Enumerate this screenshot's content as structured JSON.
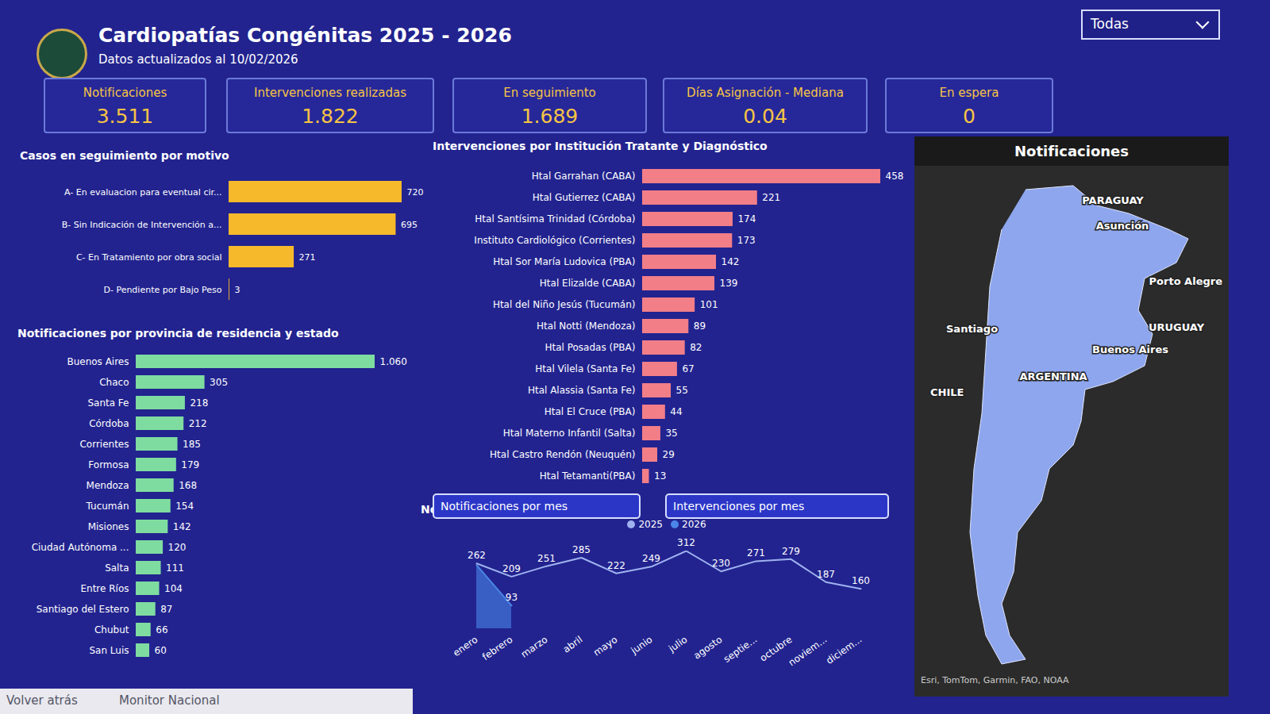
{
  "header": {
    "title": "Cardiopatías Congénitas 2025 - 2026",
    "subtitle": "Datos actualizados al 10/02/2026",
    "filter": "Todas"
  },
  "kpis": [
    {
      "label": "Notificaciones",
      "value": "3.511"
    },
    {
      "label": "Intervenciones realizadas",
      "value": "1.822"
    },
    {
      "label": "En seguimiento",
      "value": "1.689"
    },
    {
      "label": "Días Asignación - Mediana",
      "value": "0.04"
    },
    {
      "label": "En espera",
      "value": "0"
    }
  ],
  "tabs": [
    "Notificaciones por mes",
    "Intervenciones por mes"
  ],
  "map": {
    "title": "Notificaciones",
    "labels": [
      "PARAGUAY",
      "Asunción",
      "Porto Alegre",
      "Santiago",
      "URUGUAY",
      "Buenos Aires",
      "ARGENTINA",
      "CHILE"
    ],
    "attribution": "Esri, TomTom, Garmin, FAO, NOAA"
  },
  "footer": {
    "back": "Volver atrás",
    "page": "Monitor Nacional"
  },
  "chart_data": [
    {
      "type": "bar",
      "title": "Casos en seguimiento por motivo",
      "orientation": "horizontal",
      "categories": [
        "A- En evaluacion para eventual cir...",
        "B- Sin Indicación de Intervención a...",
        "C- En Tratamiento por obra social",
        "D- Pendiente por Bajo Peso"
      ],
      "values": [
        720,
        695,
        271,
        3
      ],
      "color": "#f6b92b",
      "data_labels": true,
      "tick_labels": "y"
    },
    {
      "type": "bar",
      "title": "Notificaciones por provincia de residencia y estado",
      "orientation": "horizontal",
      "categories": [
        "Buenos Aires",
        "Chaco",
        "Santa Fe",
        "Córdoba",
        "Corrientes",
        "Formosa",
        "Mendoza",
        "Tucumán",
        "Misiones",
        "Ciudad Autónoma ...",
        "Salta",
        "Entre Ríos",
        "Santiago del Estero",
        "Chubut",
        "San Luis"
      ],
      "values": [
        1060,
        305,
        218,
        212,
        185,
        179,
        168,
        154,
        142,
        120,
        111,
        104,
        87,
        66,
        60
      ],
      "value_labels": [
        "1.060",
        "305",
        "218",
        "212",
        "185",
        "179",
        "168",
        "154",
        "142",
        "120",
        "111",
        "104",
        "87",
        "66",
        "60"
      ],
      "color": "#7fdca0",
      "data_labels": true,
      "tick_labels": "y"
    },
    {
      "type": "bar",
      "title": "Intervenciones por Institución Tratante y Diagnóstico",
      "orientation": "horizontal",
      "categories": [
        "Htal Garrahan (CABA)",
        "Htal Gutierrez (CABA)",
        "Htal Santísima Trinidad (Córdoba)",
        "Instituto Cardiológico (Corrientes)",
        "Htal Sor María Ludovica (PBA)",
        "Htal Elizalde (CABA)",
        "Htal del Niño Jesús (Tucumán)",
        "Htal Notti (Mendoza)",
        "Htal Posadas (PBA)",
        "Htal Vilela (Santa Fe)",
        "Htal Alassia (Santa Fe)",
        "Htal El Cruce (PBA)",
        "Htal Materno Infantil (Salta)",
        "Htal Castro Rendón (Neuquén)",
        "Htal Tetamanti(PBA)"
      ],
      "values": [
        458,
        221,
        174,
        173,
        142,
        139,
        101,
        89,
        82,
        67,
        55,
        44,
        35,
        29,
        13
      ],
      "color": "#f27e88",
      "data_labels": true,
      "tick_labels": "y"
    },
    {
      "type": "line",
      "title": "Notificaciones",
      "categories": [
        "enero",
        "febrero",
        "marzo",
        "abril",
        "mayo",
        "junio",
        "julio",
        "agosto",
        "septie...",
        "octubre",
        "noviem...",
        "diciem..."
      ],
      "series": [
        {
          "name": "2025",
          "type": "line",
          "color": "#9fb2ef",
          "values": [
            262,
            209,
            251,
            285,
            222,
            249,
            312,
            230,
            271,
            279,
            187,
            160
          ]
        },
        {
          "name": "2026",
          "type": "area",
          "color": "#4a86e8",
          "values": [
            255,
            93,
            null,
            null,
            null,
            null,
            null,
            null,
            null,
            null,
            null,
            null
          ],
          "value_labels": [
            null,
            "93",
            null,
            null,
            null,
            null,
            null,
            null,
            null,
            null,
            null,
            null
          ]
        }
      ],
      "legend": "top",
      "data_labels": true,
      "tick_labels": "x"
    }
  ]
}
